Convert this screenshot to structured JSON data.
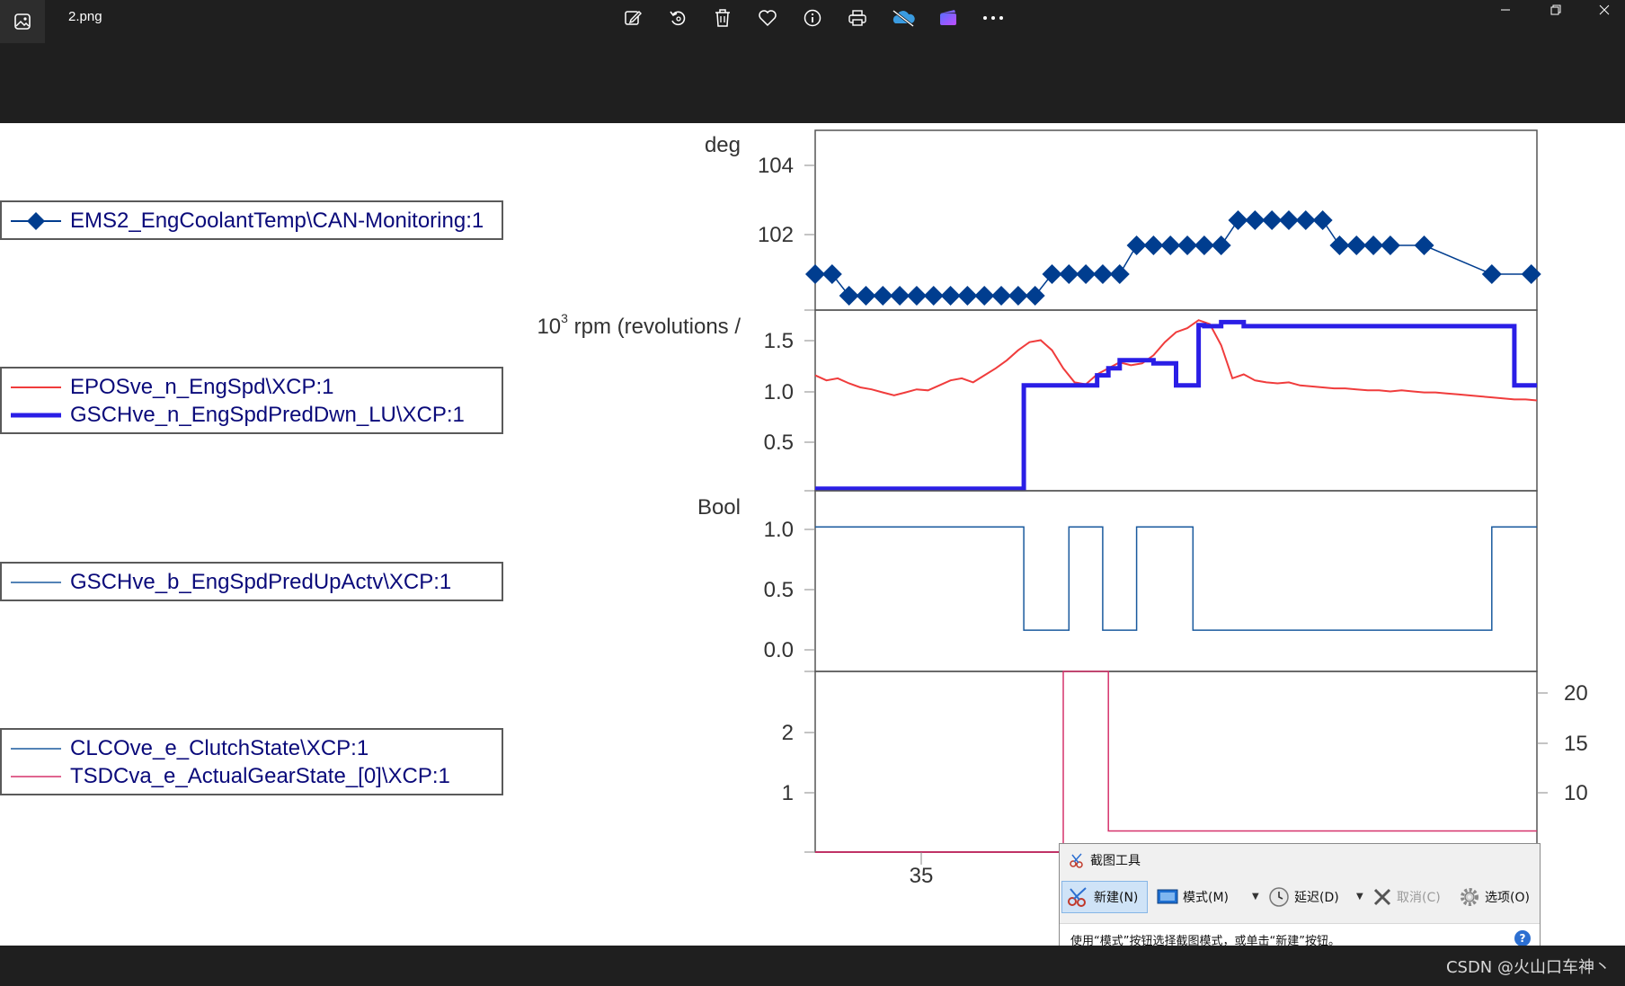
{
  "window": {
    "file_name": "2.png",
    "toolbar_icons": [
      "edit-image-icon",
      "rotate-icon",
      "delete-icon",
      "favorite-icon",
      "info-icon",
      "print-icon",
      "onedrive-icon",
      "clipchamp-icon",
      "more-icon"
    ],
    "window_controls": [
      "minimize-icon",
      "restore-icon",
      "close-icon"
    ]
  },
  "legends": [
    {
      "entries": [
        {
          "label": "EMS2_EngCoolantTemp\\CAN-Monitoring:1",
          "color": "#003d8f",
          "style": "diamond"
        }
      ]
    },
    {
      "entries": [
        {
          "label": "EPOSve_n_EngSpd\\XCP:1",
          "color": "#f03c3c",
          "style": "thin"
        },
        {
          "label": "GSCHve_n_EngSpdPredDwn_LU\\XCP:1",
          "color": "#2a1ee6",
          "style": "thick"
        }
      ]
    },
    {
      "entries": [
        {
          "label": "GSCHve_b_EngSpdPredUpActv\\XCP:1",
          "color": "#1a5a9e",
          "style": "thin"
        }
      ]
    },
    {
      "entries": [
        {
          "label": "CLCOve_e_ClutchState\\XCP:1",
          "color": "#1a5a9e",
          "style": "thin"
        },
        {
          "label": "TSDCva_e_ActualGearState_[0]\\XCP:1",
          "color": "#d6336c",
          "style": "thin"
        }
      ]
    }
  ],
  "chart_data": [
    {
      "type": "scatter",
      "ylabel": "deg",
      "yticks": [
        "104",
        "102"
      ],
      "ylim": [
        99.5,
        104.5
      ],
      "series": [
        {
          "name": "EMS2_EngCoolantTemp\\CAN-Monitoring:1",
          "x": [
            26,
            27.5,
            29,
            30.5,
            32,
            33.5,
            35,
            36.5,
            38,
            39.5,
            41,
            42.5,
            44,
            45.5,
            47,
            48.5,
            50,
            51.5,
            53,
            54.5,
            56,
            57.5,
            59,
            60.5,
            62,
            63.5,
            65,
            66.5,
            68,
            69.5,
            71,
            72.5,
            74,
            75.5,
            77,
            80,
            86,
            89.5
          ],
          "y": [
            100.5,
            100.5,
            99.9,
            99.9,
            99.9,
            99.9,
            99.9,
            99.9,
            99.9,
            99.9,
            99.9,
            99.9,
            99.9,
            99.9,
            100.5,
            100.5,
            100.5,
            100.5,
            100.5,
            101.3,
            101.3,
            101.3,
            101.3,
            101.3,
            101.3,
            102,
            102,
            102,
            102,
            102,
            102,
            101.3,
            101.3,
            101.3,
            101.3,
            101.3,
            100.5,
            100.5
          ]
        }
      ]
    },
    {
      "type": "line",
      "ylabel": "10^3 rpm (revolutions /",
      "ylabel_base": "10",
      "ylabel_exp": "3",
      "ylabel_rest": " rpm (revolutions /",
      "yticks": [
        "1.5",
        "1.0",
        "0.5"
      ],
      "ylim": [
        0,
        1.8
      ],
      "series": [
        {
          "name": "EPOSve_n_EngSpd\\XCP:1",
          "x": [
            26,
            27,
            28,
            29,
            30,
            31,
            32,
            33,
            34,
            35,
            36,
            37,
            38,
            39,
            40,
            41,
            42,
            43,
            44,
            45,
            46,
            47,
            48,
            49,
            50,
            51,
            52,
            53,
            54,
            55,
            56,
            57,
            58,
            59,
            60,
            61,
            62,
            63,
            64,
            65,
            66,
            67,
            68,
            69,
            70,
            71,
            72,
            73,
            74,
            75,
            76,
            77,
            78,
            79,
            80,
            81,
            82,
            83,
            84,
            85,
            86,
            87,
            88,
            89,
            90
          ],
          "y": [
            1.15,
            1.1,
            1.12,
            1.07,
            1.03,
            1.01,
            0.98,
            0.95,
            0.98,
            1.01,
            1.0,
            1.05,
            1.1,
            1.12,
            1.08,
            1.15,
            1.22,
            1.3,
            1.4,
            1.48,
            1.5,
            1.4,
            1.22,
            1.08,
            1.06,
            1.16,
            1.22,
            1.28,
            1.25,
            1.27,
            1.35,
            1.48,
            1.58,
            1.62,
            1.7,
            1.66,
            1.45,
            1.12,
            1.16,
            1.1,
            1.08,
            1.07,
            1.08,
            1.05,
            1.04,
            1.03,
            1.02,
            1.02,
            1.01,
            1.0,
            1.0,
            0.99,
            1.0,
            0.99,
            0.98,
            0.98,
            0.97,
            0.96,
            0.95,
            0.94,
            0.93,
            0.92,
            0.91,
            0.91,
            0.9
          ]
        },
        {
          "name": "GSCHve_n_EngSpdPredDwn_LU\\XCP:1",
          "x": [
            26,
            44.5,
            44.5,
            51,
            51,
            52,
            52,
            53,
            53,
            56,
            56,
            58,
            58,
            60,
            60,
            60.5,
            60.5,
            62,
            62,
            64,
            64,
            88,
            88,
            90
          ],
          "y": [
            0.02,
            0.02,
            1.05,
            1.05,
            1.15,
            1.15,
            1.22,
            1.22,
            1.3,
            1.3,
            1.27,
            1.27,
            1.05,
            1.05,
            1.65,
            1.65,
            1.64,
            1.64,
            1.68,
            1.68,
            1.64,
            1.64,
            1.05,
            1.05
          ]
        }
      ]
    },
    {
      "type": "line",
      "ylabel": "Bool",
      "yticks": [
        "1.0",
        "0.5",
        "0.0"
      ],
      "ylim": [
        -0.4,
        1.35
      ],
      "series": [
        {
          "name": "GSCHve_b_EngSpdPredUpActv\\XCP:1",
          "x": [
            26,
            44.5,
            44.5,
            48.5,
            48.5,
            51.5,
            51.5,
            54.5,
            54.5,
            59.5,
            59.5,
            86,
            86,
            90
          ],
          "y": [
            1,
            1,
            0,
            0,
            1,
            1,
            0,
            0,
            1,
            1,
            0,
            0,
            1,
            1
          ]
        }
      ]
    },
    {
      "type": "line",
      "yticks": [
        "2",
        "1"
      ],
      "yticks_right": [
        "20",
        "15",
        "10"
      ],
      "xticks": [
        "35"
      ],
      "ylim": [
        0,
        3
      ],
      "series": [
        {
          "name": "CLCOve_e_ClutchState\\XCP:1",
          "x": [
            26,
            48,
            48,
            52,
            52,
            90
          ],
          "y": [
            0,
            0,
            3,
            3,
            0.35,
            0.35
          ]
        },
        {
          "name": "TSDCva_e_ActualGearState_[0]\\XCP:1",
          "x": [
            26,
            90
          ],
          "y": [
            0,
            0
          ]
        }
      ]
    }
  ],
  "snipping_tool": {
    "title": "截图工具",
    "new_label": "新建(N)",
    "mode_label": "模式(M)",
    "delay_label": "延迟(D)",
    "cancel_label": "取消(C)",
    "options_label": "选项(O)",
    "hint": "使用“模式”按钮选择截图模式，或单击“新建”按钮。",
    "help": "?"
  },
  "watermark": "CSDN @火山口车神丶"
}
